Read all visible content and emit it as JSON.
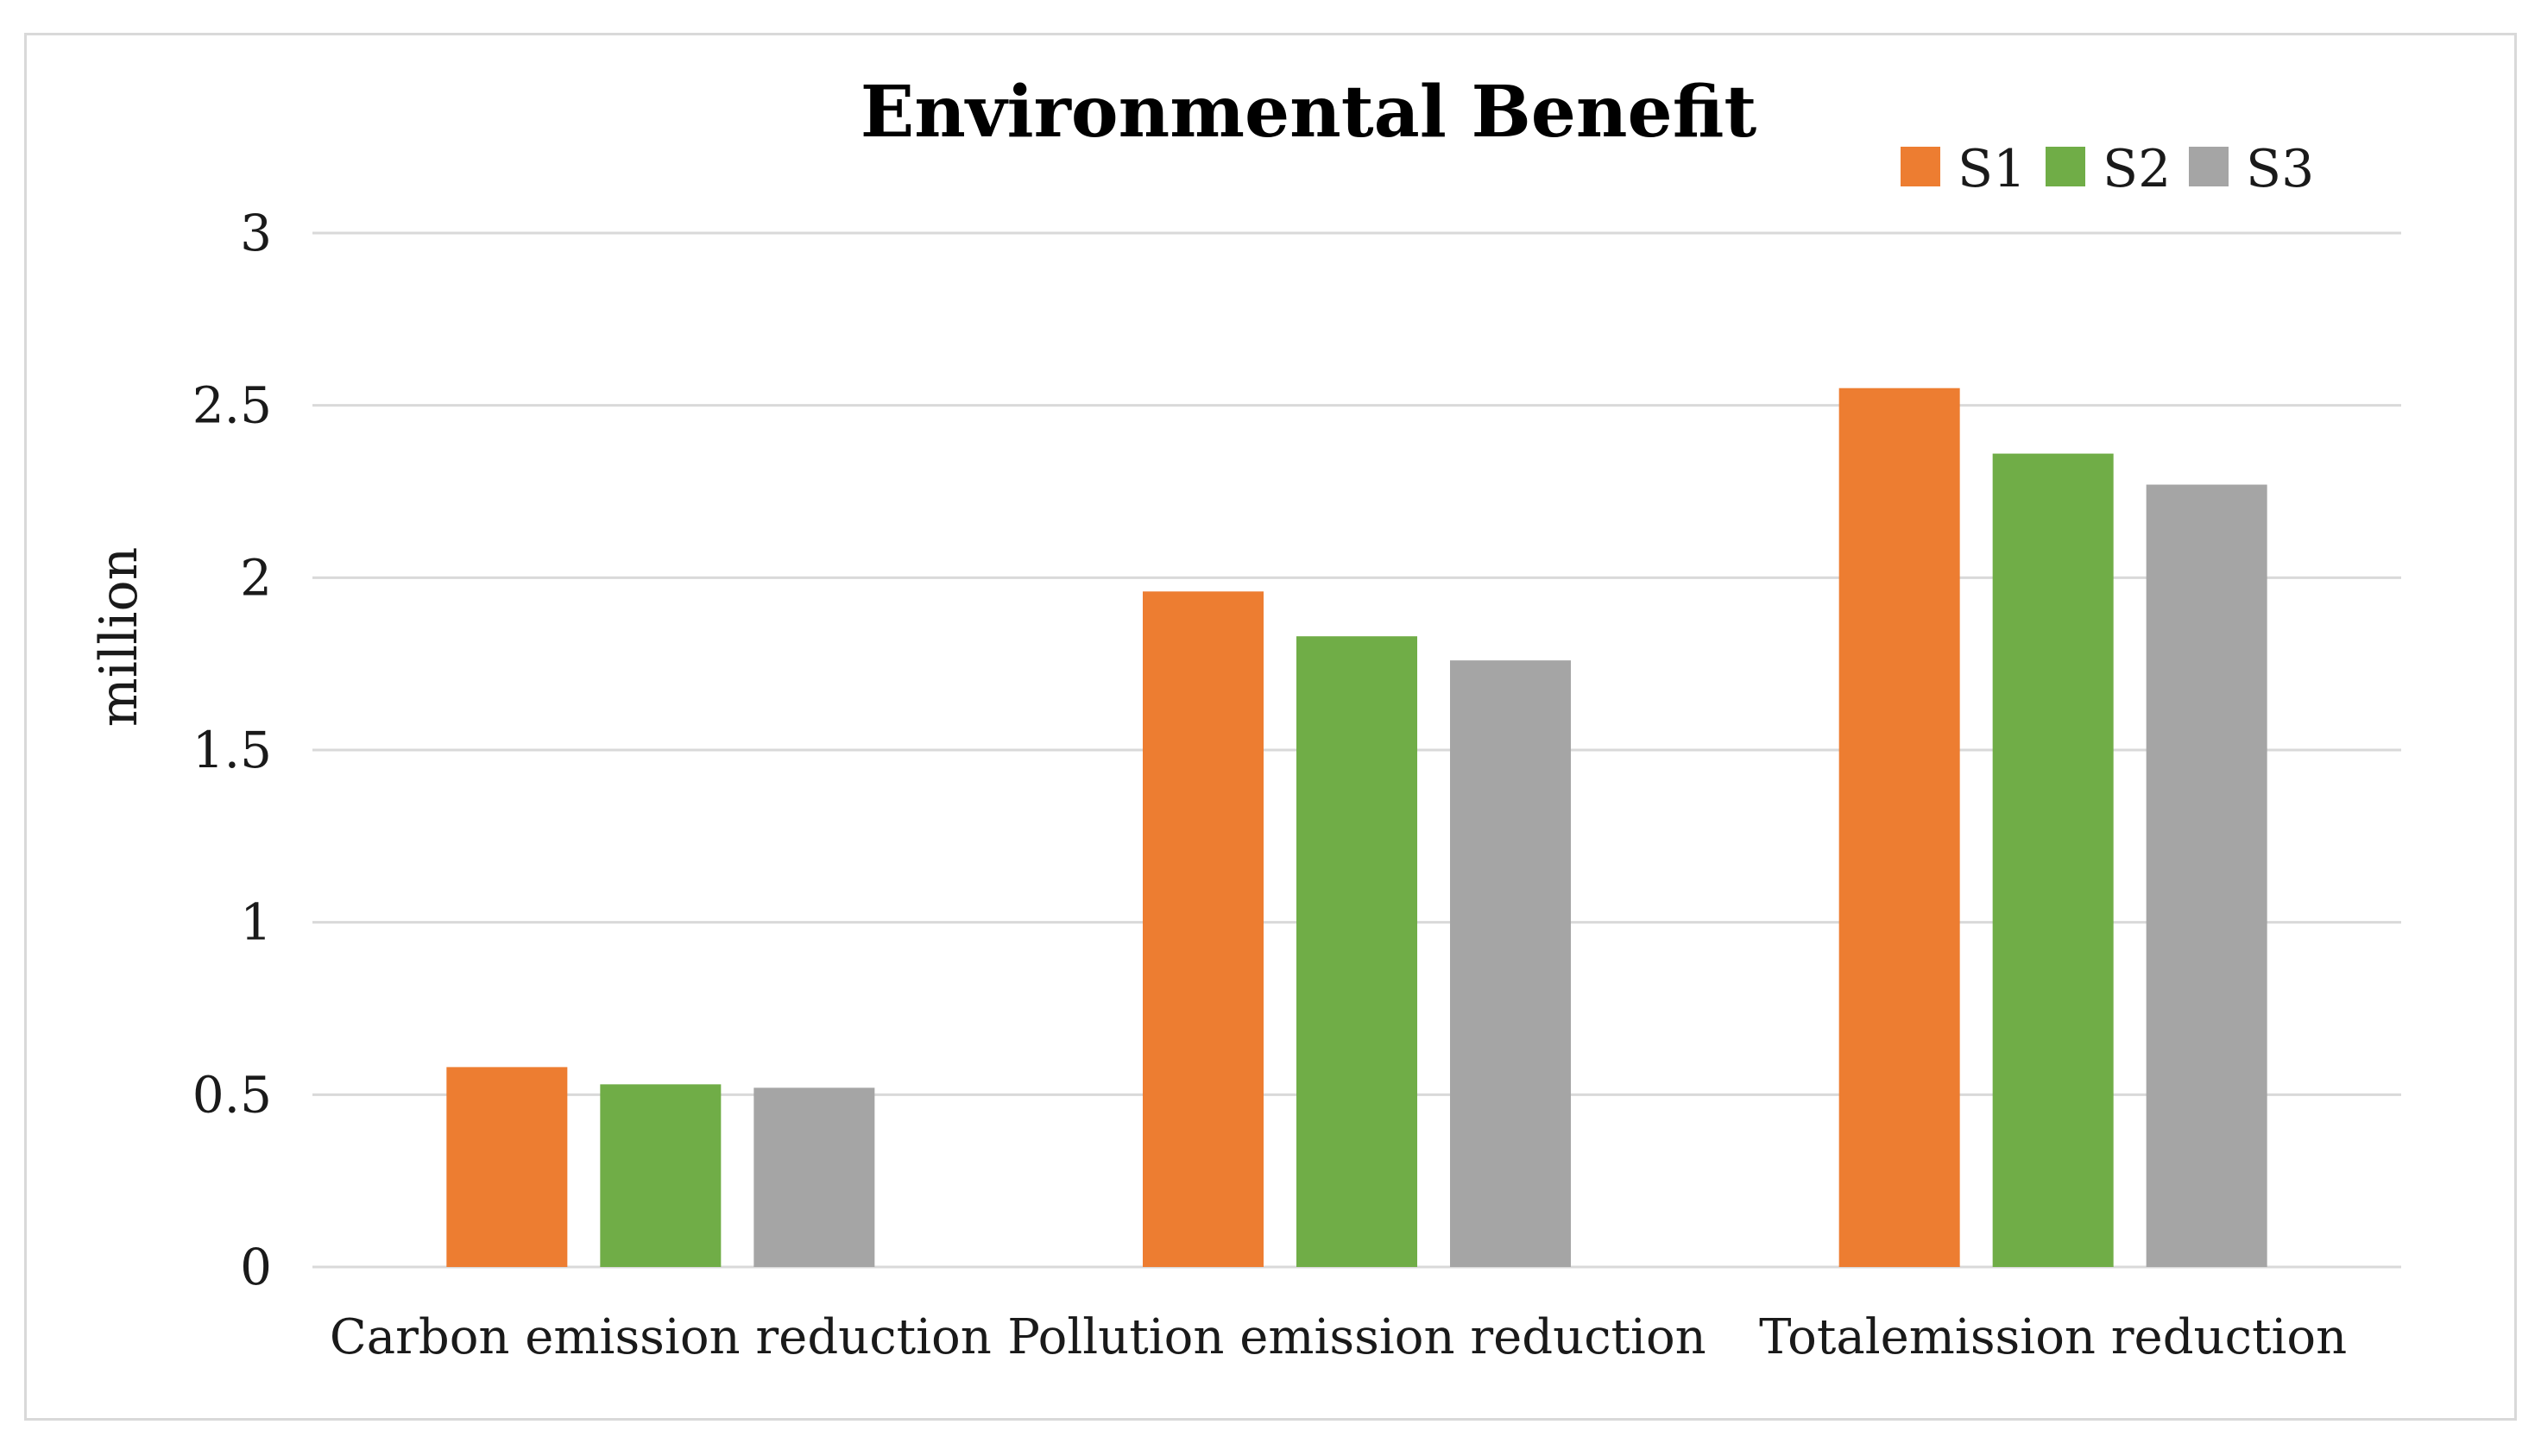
{
  "chart_data": {
    "type": "bar",
    "title": "Environmental Benefit",
    "xlabel": "",
    "ylabel": "million",
    "ylim": [
      0,
      3
    ],
    "yticks": [
      "0",
      "0.5",
      "1",
      "1.5",
      "2",
      "2.5",
      "3"
    ],
    "grid": true,
    "legend_position": "top-right",
    "categories": [
      "Carbon emission reduction",
      "Pollution emission reduction",
      "Totalemission reduction"
    ],
    "series": [
      {
        "name": "S1",
        "color": "#ED7D31",
        "values": [
          0.58,
          1.96,
          2.55
        ]
      },
      {
        "name": "S2",
        "color": "#70AD47",
        "values": [
          0.53,
          1.83,
          2.36
        ]
      },
      {
        "name": "S3",
        "color": "#A5A5A5",
        "values": [
          0.52,
          1.76,
          2.27
        ]
      }
    ]
  }
}
